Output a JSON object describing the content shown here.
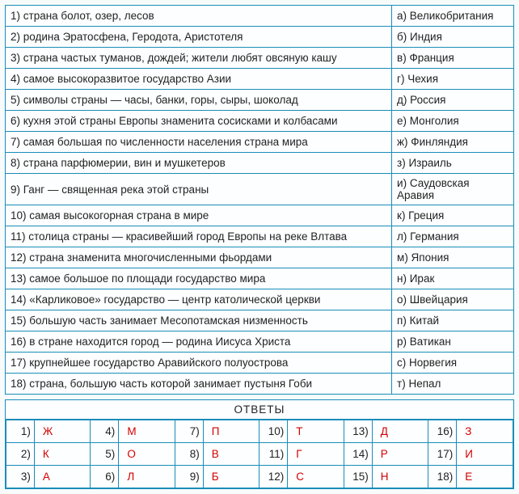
{
  "match_table": {
    "rows": [
      {
        "num": "1)",
        "desc": "страна болот, озер, лесов",
        "opt_letter": "а)",
        "opt": "Великобритания"
      },
      {
        "num": "2)",
        "desc": "родина Эратосфена, Геродота, Аристотеля",
        "opt_letter": "б)",
        "opt": "Индия"
      },
      {
        "num": "3)",
        "desc": "страна частых туманов, дождей; жители любят овсяную кашу",
        "opt_letter": "в)",
        "opt": "Франция"
      },
      {
        "num": "4)",
        "desc": "самое высокоразвитое государство Азии",
        "opt_letter": "г)",
        "opt": "Чехия"
      },
      {
        "num": "5)",
        "desc": "символы страны — часы, банки, горы, сыры, шоколад",
        "opt_letter": "д)",
        "opt": "Россия"
      },
      {
        "num": "6)",
        "desc": "кухня этой страны Европы знаменита сосисками и колбасами",
        "opt_letter": "е)",
        "opt": "Монголия"
      },
      {
        "num": "7)",
        "desc": "самая большая по численности населения страна мира",
        "opt_letter": "ж)",
        "opt": "Финляндия"
      },
      {
        "num": "8)",
        "desc": "страна парфюмерии, вин и мушкетеров",
        "opt_letter": "з)",
        "opt": "Израиль"
      },
      {
        "num": "9)",
        "desc": "Ганг — священная река этой страны",
        "opt_letter": "и)",
        "opt": "Саудовская Аравия"
      },
      {
        "num": "10)",
        "desc": "самая высокогорная страна в мире",
        "opt_letter": "к)",
        "opt": "Греция"
      },
      {
        "num": "11)",
        "desc": "столица страны — красивейший город Европы на реке Влтава",
        "opt_letter": "л)",
        "opt": "Германия"
      },
      {
        "num": "12)",
        "desc": "страна знаменита многочисленными фьордами",
        "opt_letter": "м)",
        "opt": "Япония"
      },
      {
        "num": "13)",
        "desc": "самое большое по площади государство мира",
        "opt_letter": "н)",
        "opt": "Ирак"
      },
      {
        "num": "14)",
        "desc": "«Карликовое» государство — центр католической церкви",
        "opt_letter": "о)",
        "opt": "Швейцария"
      },
      {
        "num": "15)",
        "desc": "большую часть занимает Месопотамская низменность",
        "opt_letter": "п)",
        "opt": "Китай"
      },
      {
        "num": "16)",
        "desc": "в стране находится город — родина Иисуса Христа",
        "opt_letter": "р)",
        "opt": "Ватикан"
      },
      {
        "num": "17)",
        "desc": "крупнейшее государство Аравийского полуострова",
        "opt_letter": "с)",
        "opt": "Норвегия"
      },
      {
        "num": "18)",
        "desc": "страна, большую часть которой занимает пустыня Гоби",
        "opt_letter": "т)",
        "opt": "Непал"
      }
    ]
  },
  "answers": {
    "title": "ОТВЕТЫ",
    "cells": [
      {
        "num": "1)",
        "letter": "Ж"
      },
      {
        "num": "2)",
        "letter": "К"
      },
      {
        "num": "3)",
        "letter": "А"
      },
      {
        "num": "4)",
        "letter": "М"
      },
      {
        "num": "5)",
        "letter": "О"
      },
      {
        "num": "6)",
        "letter": "Л"
      },
      {
        "num": "7)",
        "letter": "П"
      },
      {
        "num": "8)",
        "letter": "В"
      },
      {
        "num": "9)",
        "letter": "Б"
      },
      {
        "num": "10)",
        "letter": "Т"
      },
      {
        "num": "11)",
        "letter": "Г"
      },
      {
        "num": "12)",
        "letter": "С"
      },
      {
        "num": "13)",
        "letter": "Д"
      },
      {
        "num": "14)",
        "letter": "Р"
      },
      {
        "num": "15)",
        "letter": "Н"
      },
      {
        "num": "16)",
        "letter": "З"
      },
      {
        "num": "17)",
        "letter": "И"
      },
      {
        "num": "18)",
        "letter": "Е"
      }
    ],
    "grid_order": [
      [
        0,
        3,
        6,
        9,
        12,
        15
      ],
      [
        1,
        4,
        7,
        10,
        13,
        16
      ],
      [
        2,
        5,
        8,
        11,
        14,
        17
      ]
    ]
  },
  "style": {
    "border_color": "#1a8db8",
    "background": "#fdfeff",
    "answer_color": "#d30000",
    "font_size_pt": 10
  }
}
